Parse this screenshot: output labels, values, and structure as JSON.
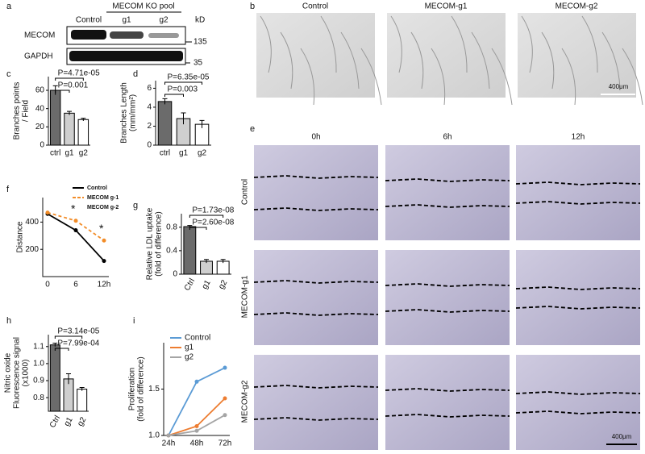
{
  "panel_labels": [
    "a",
    "b",
    "c",
    "d",
    "e",
    "f",
    "g",
    "h",
    "i"
  ],
  "blot": {
    "group": "MECOM KO pool",
    "lanes": [
      "Control",
      "g1",
      "g2"
    ],
    "unit": "kD",
    "rows": [
      "MECOM",
      "GAPDH"
    ],
    "markers": [
      "135",
      "35"
    ]
  },
  "images_b": {
    "columns": [
      "Control",
      "MECOM-g1",
      "MECOM-g2"
    ],
    "scale": "400μm"
  },
  "images_e": {
    "columns": [
      "0h",
      "6h",
      "12h"
    ],
    "rows": [
      "Control",
      "MECOM-g1",
      "MECOM-g2"
    ],
    "scale": "400μm"
  },
  "chart_data": [
    {
      "type": "bar",
      "ylabel": [
        "Branches points",
        "/ Field"
      ],
      "categories": [
        "ctrl",
        "g1",
        "g2"
      ],
      "values": [
        60,
        35,
        28
      ],
      "errors": [
        5,
        2,
        1.5
      ],
      "colors": [
        "#6b6b6b",
        "#cfcfcf",
        "#ffffff"
      ],
      "ylim": [
        0,
        75
      ],
      "yticks": [
        0,
        20,
        40,
        60
      ],
      "annotations": [
        "P=4.71e-05",
        "P=0.001"
      ]
    },
    {
      "type": "bar",
      "ylabel": [
        "Branches Length",
        "(mm/mm²)"
      ],
      "categories": [
        "ctrl",
        "g1",
        "g2"
      ],
      "values": [
        4.6,
        2.8,
        2.2
      ],
      "errors": [
        0.3,
        0.6,
        0.4
      ],
      "colors": [
        "#6b6b6b",
        "#cfcfcf",
        "#ffffff"
      ],
      "ylim": [
        0,
        6.8
      ],
      "yticks": [
        0,
        2,
        4,
        6
      ],
      "annotations": [
        "P=6.35e-05",
        "P=0.003"
      ]
    },
    {
      "type": "line",
      "ylabel": [
        "Distance"
      ],
      "categories": [
        "0",
        "6",
        "12h"
      ],
      "series": [
        {
          "name": "Control",
          "color": "#000000",
          "values": [
            460,
            340,
            115
          ],
          "style": "solid"
        },
        {
          "name": "MECOM g-1",
          "color": "#f28c28",
          "values": [
            470,
            410,
            265
          ],
          "style": "dashed"
        },
        {
          "name": "MECOM g-2",
          "color": "#000000",
          "values": [
            null,
            null,
            null
          ],
          "style": "solid"
        }
      ],
      "ylim": [
        0,
        580
      ],
      "yticks": [
        200,
        400
      ],
      "legend": "upper right",
      "annotations": [
        "*",
        "*"
      ]
    },
    {
      "type": "bar",
      "ylabel": [
        "Relative LDL uptake",
        "(fold of difference)"
      ],
      "categories": [
        "Ctrl",
        "g1",
        "g2"
      ],
      "values": [
        0.81,
        0.22,
        0.22
      ],
      "errors": [
        0.02,
        0.03,
        0.03
      ],
      "colors": [
        "#6b6b6b",
        "#cfcfcf",
        "#ffffff"
      ],
      "ylim": [
        0,
        1.03
      ],
      "yticks": [
        0,
        0.4,
        0.8
      ],
      "annotations": [
        "P=1.73e-08",
        "P=2.60e-08"
      ]
    },
    {
      "type": "bar",
      "ylabel": [
        "Nitric oxide",
        "Fluorescence signal",
        "(x1000)"
      ],
      "categories": [
        "Ctrl",
        "g1",
        "g2"
      ],
      "values": [
        1.11,
        0.91,
        0.85
      ],
      "errors": [
        0.01,
        0.03,
        0.01
      ],
      "colors": [
        "#6b6b6b",
        "#cfcfcf",
        "#ffffff"
      ],
      "ylim": [
        0.72,
        1.17
      ],
      "yticks": [
        0.8,
        0.9,
        {
          "value": 1.0,
          "label": "1.0"
        },
        1.1
      ],
      "annotations": [
        "P=3.14e-05",
        "P=7.99e-04"
      ]
    },
    {
      "type": "line",
      "ylabel": [
        "Proliferation",
        "(fold of difference)"
      ],
      "categories": [
        "24h",
        "48h",
        "72h"
      ],
      "series": [
        {
          "name": "Control",
          "color": "#5b9bd5",
          "values": [
            1.0,
            1.58,
            1.73
          ],
          "style": "solid"
        },
        {
          "name": "g1",
          "color": "#ed7d31",
          "values": [
            1.0,
            1.1,
            1.4
          ],
          "style": "solid"
        },
        {
          "name": "g2",
          "color": "#a5a5a5",
          "values": [
            1.0,
            1.05,
            1.22
          ],
          "style": "solid"
        }
      ],
      "ylim": [
        1.0,
        2.0
      ],
      "yticks": [
        {
          "value": 1.0,
          "label": "1.0"
        },
        1.5
      ],
      "legend": "upper left"
    }
  ]
}
